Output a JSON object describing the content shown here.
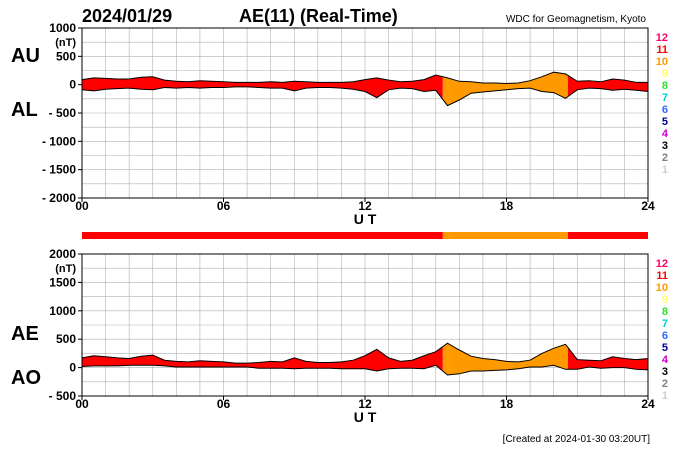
{
  "header": {
    "date": "2024/01/29",
    "title": "AE(11) (Real-Time)",
    "source": "WDC for Geomagnetism, Kyoto",
    "footer": "[Created at 2024-01-30 03:20UT]"
  },
  "colors": {
    "background": "#ffffff",
    "grid": "#b0b0b0",
    "outline": "#000000",
    "station_scale": [
      "#cfcfcf",
      "#808080",
      "#000000",
      "#cc00cc",
      "#000099",
      "#3366ff",
      "#00cccc",
      "#33dd33",
      "#ffff66",
      "#ff9900",
      "#ff0000",
      "#ff0066"
    ]
  },
  "station_scale_labels": [
    "1",
    "2",
    "3",
    "4",
    "5",
    "6",
    "7",
    "8",
    "9",
    "10",
    "11",
    "12"
  ],
  "chart_data": [
    {
      "type": "area",
      "panel": "AU/AL",
      "left_labels": [
        "AU",
        "AL"
      ],
      "ylabel": "(nT)",
      "xlabel": "U T",
      "xlim": [
        0,
        24
      ],
      "ylim": [
        -2000,
        1000
      ],
      "xticks": [
        "00",
        "06",
        "12",
        "18",
        "24"
      ],
      "yticks": [
        {
          "value": 1000,
          "label": "1000"
        },
        {
          "value": 500,
          "label": "500"
        },
        {
          "value": 0,
          "label": "0"
        },
        {
          "value": -500,
          "label": "- 500"
        },
        {
          "value": -1000,
          "label": "- 1000"
        },
        {
          "value": -1500,
          "label": "- 1500"
        },
        {
          "value": -2000,
          "label": "- 2000"
        }
      ],
      "grid": true,
      "x": [
        0,
        0.5,
        1,
        1.5,
        2,
        2.5,
        3,
        3.5,
        4,
        4.5,
        5,
        5.5,
        6,
        6.5,
        7,
        7.5,
        8,
        8.5,
        9,
        9.5,
        10,
        10.5,
        11,
        11.5,
        12,
        12.5,
        13,
        13.5,
        14,
        14.5,
        15,
        15.5,
        16,
        16.5,
        17,
        17.5,
        18,
        18.5,
        19,
        19.5,
        20,
        20.5,
        21,
        21.5,
        22,
        22.5,
        23,
        23.5,
        24
      ],
      "series": [
        {
          "values": [
            90,
            120,
            110,
            100,
            100,
            130,
            140,
            80,
            60,
            50,
            70,
            60,
            50,
            40,
            40,
            40,
            50,
            40,
            60,
            50,
            40,
            40,
            40,
            50,
            90,
            120,
            80,
            50,
            60,
            90,
            170,
            120,
            60,
            50,
            30,
            30,
            20,
            30,
            70,
            140,
            220,
            190,
            60,
            70,
            50,
            100,
            80,
            40,
            40
          ]
        },
        {
          "values": [
            -90,
            -110,
            -80,
            -70,
            -60,
            -80,
            -90,
            -50,
            -60,
            -50,
            -60,
            -50,
            -50,
            -40,
            -40,
            -50,
            -60,
            -60,
            -110,
            -60,
            -50,
            -50,
            -60,
            -80,
            -120,
            -230,
            -90,
            -60,
            -70,
            -120,
            -100,
            -370,
            -270,
            -150,
            -130,
            -110,
            -90,
            -70,
            -60,
            -120,
            -140,
            -240,
            -90,
            -60,
            -70,
            -100,
            -80,
            -100,
            -120
          ]
        }
      ],
      "station_counts": [
        {
          "from": 0,
          "to": 15.3,
          "count": 11
        },
        {
          "from": 15.3,
          "to": 15.6,
          "count": 10
        },
        {
          "from": 15.6,
          "to": 20.6,
          "count": 10
        },
        {
          "from": 20.6,
          "to": 24,
          "count": 11
        }
      ]
    },
    {
      "type": "area",
      "panel": "AE/AO",
      "left_labels": [
        "AE",
        "AO"
      ],
      "ylabel": "(nT)",
      "xlabel": "U T",
      "xlim": [
        0,
        24
      ],
      "ylim": [
        -500,
        2000
      ],
      "xticks": [
        "00",
        "06",
        "12",
        "18",
        "24"
      ],
      "yticks": [
        {
          "value": 2000,
          "label": "2000"
        },
        {
          "value": 1500,
          "label": "1500"
        },
        {
          "value": 1000,
          "label": "1000"
        },
        {
          "value": 500,
          "label": "500"
        },
        {
          "value": 0,
          "label": "0"
        },
        {
          "value": -500,
          "label": "- 500"
        }
      ],
      "grid": true,
      "x": [
        0,
        0.5,
        1,
        1.5,
        2,
        2.5,
        3,
        3.5,
        4,
        4.5,
        5,
        5.5,
        6,
        6.5,
        7,
        7.5,
        8,
        8.5,
        9,
        9.5,
        10,
        10.5,
        11,
        11.5,
        12,
        12.5,
        13,
        13.5,
        14,
        14.5,
        15,
        15.5,
        16,
        16.5,
        17,
        17.5,
        18,
        18.5,
        19,
        19.5,
        20,
        20.5,
        21,
        21.5,
        22,
        22.5,
        23,
        23.5,
        24
      ],
      "series": [
        {
          "values": [
            170,
            210,
            190,
            170,
            160,
            200,
            220,
            130,
            110,
            100,
            120,
            110,
            100,
            80,
            80,
            90,
            110,
            100,
            170,
            110,
            90,
            90,
            100,
            130,
            210,
            320,
            170,
            110,
            130,
            210,
            280,
            430,
            310,
            200,
            160,
            140,
            110,
            100,
            130,
            250,
            340,
            410,
            140,
            130,
            120,
            190,
            160,
            140,
            160
          ]
        },
        {
          "values": [
            20,
            30,
            30,
            30,
            40,
            40,
            40,
            30,
            10,
            10,
            10,
            10,
            10,
            10,
            10,
            -10,
            -10,
            -10,
            -20,
            -10,
            -10,
            -10,
            -20,
            -20,
            -20,
            -60,
            -20,
            -10,
            -10,
            -20,
            40,
            -130,
            -110,
            -60,
            -60,
            -50,
            -40,
            -20,
            10,
            10,
            40,
            -30,
            -30,
            10,
            -10,
            0,
            0,
            -30,
            -40
          ]
        }
      ],
      "station_counts": [
        {
          "from": 0,
          "to": 15.3,
          "count": 11
        },
        {
          "from": 15.3,
          "to": 15.6,
          "count": 10
        },
        {
          "from": 15.6,
          "to": 20.6,
          "count": 10
        },
        {
          "from": 20.6,
          "to": 24,
          "count": 11
        }
      ]
    }
  ]
}
